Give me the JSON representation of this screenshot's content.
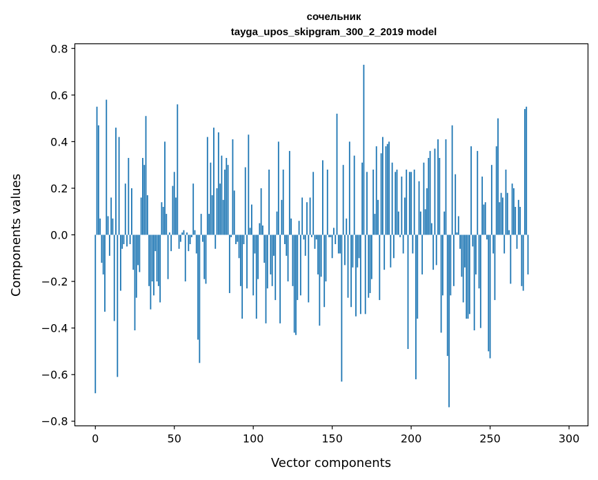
{
  "chart_data": {
    "type": "bar",
    "title": "сочельник",
    "subtitle": "tayga_upos_skipgram_300_2_2019 model",
    "xlabel": "Vector components",
    "ylabel": "Components values",
    "xlim": [
      -13,
      312
    ],
    "ylim": [
      -0.82,
      0.82
    ],
    "xticks": [
      0,
      50,
      100,
      150,
      200,
      250,
      300
    ],
    "yticks": [
      -0.8,
      -0.6,
      -0.4,
      -0.2,
      0.0,
      0.2,
      0.4,
      0.6,
      0.8
    ],
    "ytick_labels": [
      "−0.8",
      "−0.6",
      "−0.4",
      "−0.2",
      "0.0",
      "0.2",
      "0.4",
      "0.6",
      "0.8"
    ],
    "bar_color": "#1f77b4",
    "series": [
      {
        "name": "components",
        "x_start": 0,
        "values": [
          -0.68,
          0.55,
          0.47,
          0.07,
          -0.12,
          -0.17,
          -0.33,
          0.58,
          0.08,
          -0.09,
          0.16,
          0.07,
          -0.37,
          0.46,
          -0.61,
          0.42,
          -0.24,
          -0.06,
          -0.04,
          0.22,
          -0.05,
          0.33,
          -0.04,
          0.2,
          -0.15,
          -0.41,
          -0.27,
          -0.13,
          -0.16,
          0.16,
          0.33,
          0.3,
          0.51,
          0.17,
          -0.22,
          -0.32,
          -0.2,
          -0.26,
          -0.07,
          -0.2,
          -0.22,
          -0.29,
          0.14,
          0.12,
          0.4,
          0.09,
          -0.19,
          0.01,
          -0.07,
          0.21,
          0.27,
          0.16,
          0.56,
          -0.06,
          -0.03,
          0.01,
          0.02,
          -0.2,
          0.01,
          -0.07,
          -0.04,
          -0.01,
          0.22,
          0.02,
          -0.08,
          -0.45,
          -0.55,
          0.09,
          -0.03,
          -0.19,
          -0.21,
          0.42,
          0.09,
          0.31,
          0.17,
          0.46,
          -0.06,
          0.2,
          0.44,
          0.22,
          0.34,
          0.15,
          0.28,
          0.33,
          0.3,
          -0.25,
          -0.01,
          0.41,
          0.19,
          -0.04,
          -0.03,
          -0.1,
          -0.22,
          -0.36,
          -0.04,
          0.29,
          -0.23,
          0.43,
          0.03,
          0.13,
          -0.26,
          -0.08,
          -0.36,
          -0.19,
          0.05,
          0.2,
          0.04,
          -0.12,
          -0.38,
          -0.23,
          0.28,
          -0.17,
          -0.22,
          -0.09,
          -0.28,
          0.1,
          0.4,
          -0.38,
          0.15,
          0.28,
          -0.04,
          -0.09,
          -0.2,
          0.36,
          0.07,
          -0.22,
          -0.42,
          -0.43,
          -0.28,
          0.06,
          -0.26,
          0.16,
          -0.02,
          -0.09,
          0.14,
          -0.29,
          0.16,
          -0.01,
          0.27,
          -0.06,
          -0.02,
          -0.17,
          -0.39,
          -0.18,
          0.32,
          -0.31,
          -0.2,
          0.28,
          -0.01,
          -0.01,
          -0.1,
          0.03,
          -0.04,
          0.52,
          -0.08,
          -0.08,
          -0.63,
          0.3,
          -0.13,
          0.07,
          -0.27,
          0.4,
          -0.31,
          -0.14,
          0.34,
          -0.35,
          -0.14,
          -0.1,
          -0.34,
          0.31,
          0.73,
          -0.34,
          0.27,
          -0.27,
          -0.25,
          -0.19,
          0.28,
          0.09,
          0.38,
          0.15,
          -0.28,
          0.35,
          0.42,
          -0.15,
          0.38,
          0.39,
          0.4,
          -0.14,
          0.31,
          -0.1,
          0.27,
          0.28,
          0.1,
          -0.01,
          0.25,
          -0.08,
          0.16,
          0.28,
          -0.49,
          0.27,
          0.27,
          -0.08,
          0.28,
          -0.62,
          -0.36,
          0.23,
          0.1,
          -0.17,
          0.31,
          0.11,
          0.2,
          0.33,
          0.36,
          0.05,
          -0.15,
          0.37,
          -0.13,
          0.41,
          0.33,
          -0.42,
          -0.26,
          0.1,
          0.41,
          -0.52,
          -0.74,
          -0.26,
          0.47,
          -0.22,
          0.26,
          0.01,
          0.08,
          -0.06,
          -0.18,
          -0.29,
          -0.14,
          -0.36,
          -0.36,
          -0.34,
          0.38,
          -0.05,
          -0.41,
          -0.17,
          0.36,
          -0.23,
          -0.4,
          0.25,
          0.13,
          0.14,
          -0.02,
          -0.5,
          -0.53,
          0.3,
          -0.08,
          -0.28,
          0.38,
          0.5,
          0.14,
          0.18,
          0.16,
          -0.08,
          0.28,
          0.18,
          0.02,
          -0.21,
          0.22,
          0.2,
          0.12,
          -0.06,
          0.15,
          0.12,
          -0.22,
          -0.24,
          0.54,
          0.55,
          -0.17
        ]
      }
    ]
  }
}
